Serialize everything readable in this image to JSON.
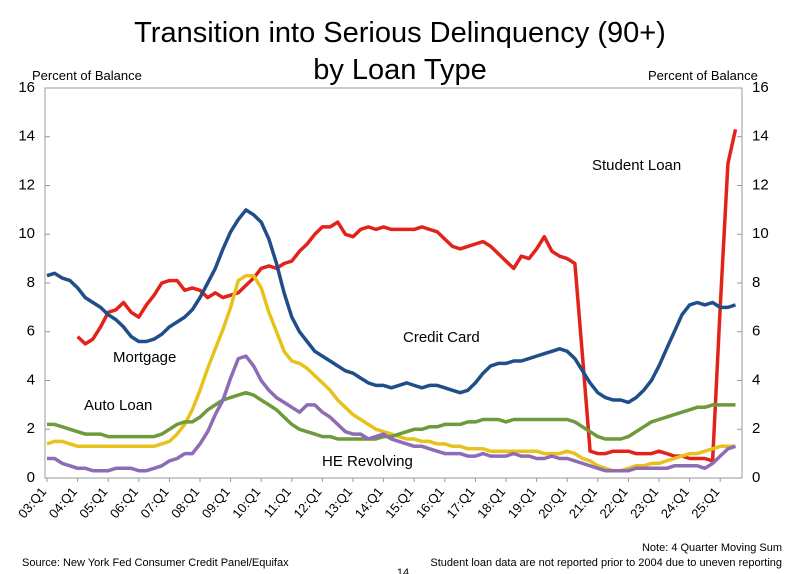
{
  "chart_data": {
    "type": "line",
    "title": [
      "Transition into Serious Delinquency (90+)",
      "by Loan Type"
    ],
    "ylabel": "Percent of Balance",
    "y2label": "Percent of Balance",
    "categories": [
      "03:Q1",
      null,
      null,
      null,
      "04:Q1",
      null,
      null,
      null,
      "05:Q1",
      null,
      null,
      null,
      "06:Q1",
      null,
      null,
      null,
      "07:Q1",
      null,
      null,
      null,
      "08:Q1",
      null,
      null,
      null,
      "09:Q1",
      null,
      null,
      null,
      "10:Q1",
      null,
      null,
      null,
      "11:Q1",
      null,
      null,
      null,
      "12:Q1",
      null,
      null,
      null,
      "13:Q1",
      null,
      null,
      null,
      "14:Q1",
      null,
      null,
      null,
      "15:Q1",
      null,
      null,
      null,
      "16:Q1",
      null,
      null,
      null,
      "17:Q1",
      null,
      null,
      null,
      "18:Q1",
      null,
      null,
      null,
      "19:Q1",
      null,
      null,
      null,
      "20:Q1",
      null,
      null,
      null,
      "21:Q1",
      null,
      null,
      null,
      "22:Q1",
      null,
      null,
      null,
      "23:Q1",
      null,
      null,
      null,
      "24:Q1",
      null,
      null,
      null,
      "25:Q1",
      null,
      null
    ],
    "series": [
      {
        "name": "Student Loan",
        "color": "#e2231a",
        "values": [
          null,
          null,
          null,
          null,
          5.8,
          5.5,
          5.7,
          6.2,
          6.8,
          6.9,
          7.2,
          6.8,
          6.6,
          7.1,
          7.5,
          8.0,
          8.1,
          8.1,
          7.7,
          7.8,
          7.7,
          7.4,
          7.6,
          7.4,
          7.5,
          7.6,
          7.9,
          8.2,
          8.6,
          8.7,
          8.6,
          8.8,
          8.9,
          9.3,
          9.6,
          10.0,
          10.3,
          10.3,
          10.5,
          10.0,
          9.9,
          10.2,
          10.3,
          10.2,
          10.3,
          10.2,
          10.2,
          10.2,
          10.2,
          10.3,
          10.2,
          10.1,
          9.8,
          9.5,
          9.4,
          9.5,
          9.6,
          9.7,
          9.5,
          9.2,
          8.9,
          8.6,
          9.1,
          9.0,
          9.4,
          9.9,
          9.3,
          9.1,
          9.0,
          8.8,
          5.0,
          1.1,
          1.0,
          1.0,
          1.1,
          1.1,
          1.1,
          1.0,
          1.0,
          1.0,
          1.1,
          1.0,
          0.9,
          0.9,
          0.8,
          0.8,
          0.8,
          0.7,
          7.0,
          12.9,
          14.3
        ]
      },
      {
        "name": "Credit Card",
        "color": "#1f4e89",
        "values": [
          8.3,
          8.4,
          8.2,
          8.1,
          7.8,
          7.4,
          7.2,
          7.0,
          6.7,
          6.5,
          6.2,
          5.8,
          5.6,
          5.6,
          5.7,
          5.9,
          6.2,
          6.4,
          6.6,
          6.9,
          7.4,
          8.0,
          8.6,
          9.4,
          10.1,
          10.6,
          11.0,
          10.8,
          10.5,
          9.8,
          8.8,
          7.6,
          6.6,
          6.0,
          5.6,
          5.2,
          5.0,
          4.8,
          4.6,
          4.4,
          4.3,
          4.1,
          3.9,
          3.8,
          3.8,
          3.7,
          3.8,
          3.9,
          3.8,
          3.7,
          3.8,
          3.8,
          3.7,
          3.6,
          3.5,
          3.6,
          3.9,
          4.3,
          4.6,
          4.7,
          4.7,
          4.8,
          4.8,
          4.9,
          5.0,
          5.1,
          5.2,
          5.3,
          5.2,
          4.9,
          4.4,
          3.9,
          3.5,
          3.3,
          3.2,
          3.2,
          3.1,
          3.3,
          3.6,
          4.0,
          4.6,
          5.3,
          6.0,
          6.7,
          7.1,
          7.2,
          7.1,
          7.2,
          7.0,
          7.0,
          7.1
        ]
      },
      {
        "name": "Mortgage",
        "color": "#e8c21c",
        "values": [
          1.4,
          1.5,
          1.5,
          1.4,
          1.3,
          1.3,
          1.3,
          1.3,
          1.3,
          1.3,
          1.3,
          1.3,
          1.3,
          1.3,
          1.3,
          1.4,
          1.5,
          1.8,
          2.2,
          2.8,
          3.6,
          4.5,
          5.3,
          6.1,
          7.0,
          8.1,
          8.3,
          8.3,
          7.8,
          6.8,
          6.0,
          5.2,
          4.8,
          4.7,
          4.5,
          4.2,
          3.9,
          3.6,
          3.2,
          2.9,
          2.6,
          2.4,
          2.2,
          2.0,
          1.9,
          1.8,
          1.7,
          1.6,
          1.6,
          1.5,
          1.5,
          1.4,
          1.4,
          1.3,
          1.3,
          1.2,
          1.2,
          1.2,
          1.1,
          1.1,
          1.1,
          1.1,
          1.1,
          1.1,
          1.1,
          1.0,
          1.0,
          1.0,
          1.1,
          1.0,
          0.8,
          0.7,
          0.5,
          0.4,
          0.3,
          0.3,
          0.4,
          0.5,
          0.5,
          0.6,
          0.6,
          0.7,
          0.8,
          0.9,
          1.0,
          1.0,
          1.1,
          1.2,
          1.3,
          1.3,
          1.3
        ]
      },
      {
        "name": "Auto Loan",
        "color": "#6e9a3c",
        "values": [
          2.2,
          2.2,
          2.1,
          2.0,
          1.9,
          1.8,
          1.8,
          1.8,
          1.7,
          1.7,
          1.7,
          1.7,
          1.7,
          1.7,
          1.7,
          1.8,
          2.0,
          2.2,
          2.3,
          2.3,
          2.5,
          2.8,
          3.0,
          3.2,
          3.3,
          3.4,
          3.5,
          3.4,
          3.2,
          3.0,
          2.8,
          2.5,
          2.2,
          2.0,
          1.9,
          1.8,
          1.7,
          1.7,
          1.6,
          1.6,
          1.6,
          1.6,
          1.6,
          1.6,
          1.7,
          1.7,
          1.8,
          1.9,
          2.0,
          2.0,
          2.1,
          2.1,
          2.2,
          2.2,
          2.2,
          2.3,
          2.3,
          2.4,
          2.4,
          2.4,
          2.3,
          2.4,
          2.4,
          2.4,
          2.4,
          2.4,
          2.4,
          2.4,
          2.4,
          2.3,
          2.1,
          1.9,
          1.7,
          1.6,
          1.6,
          1.6,
          1.7,
          1.9,
          2.1,
          2.3,
          2.4,
          2.5,
          2.6,
          2.7,
          2.8,
          2.9,
          2.9,
          3.0,
          3.0,
          3.0,
          3.0
        ]
      },
      {
        "name": "HE Revolving",
        "color": "#8e6bb5",
        "values": [
          0.8,
          0.8,
          0.6,
          0.5,
          0.4,
          0.4,
          0.3,
          0.3,
          0.3,
          0.4,
          0.4,
          0.4,
          0.3,
          0.3,
          0.4,
          0.5,
          0.7,
          0.8,
          1.0,
          1.0,
          1.4,
          1.9,
          2.6,
          3.2,
          4.1,
          4.9,
          5.0,
          4.6,
          4.0,
          3.6,
          3.3,
          3.1,
          2.9,
          2.7,
          3.0,
          3.0,
          2.7,
          2.5,
          2.2,
          1.9,
          1.8,
          1.8,
          1.6,
          1.7,
          1.8,
          1.6,
          1.5,
          1.4,
          1.3,
          1.3,
          1.2,
          1.1,
          1.0,
          1.0,
          1.0,
          0.9,
          0.9,
          1.0,
          0.9,
          0.9,
          0.9,
          1.0,
          0.9,
          0.9,
          0.8,
          0.8,
          0.9,
          0.8,
          0.8,
          0.7,
          0.6,
          0.5,
          0.4,
          0.3,
          0.3,
          0.3,
          0.3,
          0.4,
          0.4,
          0.4,
          0.4,
          0.4,
          0.5,
          0.5,
          0.5,
          0.5,
          0.4,
          0.6,
          0.9,
          1.2,
          1.3
        ]
      }
    ],
    "ylim": [
      0,
      16
    ],
    "yticks": [
      0,
      2,
      4,
      6,
      8,
      10,
      12,
      14,
      16
    ],
    "y2lim": [
      0,
      16
    ],
    "y2ticks": [
      0,
      2,
      4,
      6,
      8,
      10,
      12,
      14,
      16
    ],
    "grid": false,
    "source": "Source: New York Fed Consumer Credit Panel/Equifax",
    "notes": [
      "Note: 4 Quarter Moving Sum",
      "Student loan data are not reported prior to 2004 due to uneven reporting"
    ],
    "page_number": "14"
  }
}
